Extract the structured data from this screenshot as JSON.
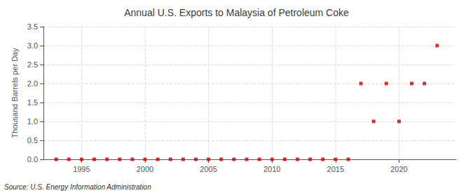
{
  "chart_data": {
    "type": "scatter",
    "title": "Annual U.S. Exports to Malaysia of Petroleum Coke",
    "ylabel": "Thousand Barrels per Day",
    "annotations": [
      "Source: U.S. Energy Information Administration"
    ],
    "x": [
      1993,
      1994,
      1995,
      1996,
      1997,
      1998,
      1999,
      2000,
      2001,
      2002,
      2003,
      2004,
      2005,
      2006,
      2007,
      2008,
      2009,
      2010,
      2011,
      2012,
      2013,
      2014,
      2015,
      2016,
      2017,
      2018,
      2019,
      2020,
      2021,
      2022,
      2023
    ],
    "values": [
      0,
      0,
      0,
      0,
      0,
      0,
      0,
      0,
      0,
      0,
      0,
      0,
      0,
      0,
      0,
      0,
      0,
      0,
      0,
      0,
      0,
      0,
      0,
      0,
      2.0,
      1.0,
      2.0,
      1.0,
      2.0,
      2.0,
      3.0
    ],
    "color": "#cc0000",
    "marker": "square",
    "xlim": [
      1992,
      2024.5
    ],
    "xticks": [
      1995,
      2000,
      2005,
      2010,
      2015,
      2020
    ],
    "ylim": [
      0,
      3.5
    ],
    "yticks": [
      {
        "value": 0,
        "label": "0.0"
      },
      0.5,
      {
        "value": 1,
        "label": "1.0"
      },
      1.5,
      {
        "value": 2,
        "label": "2.0"
      },
      2.5,
      {
        "value": 3,
        "label": "3.0"
      },
      3.5
    ],
    "grid": true
  }
}
